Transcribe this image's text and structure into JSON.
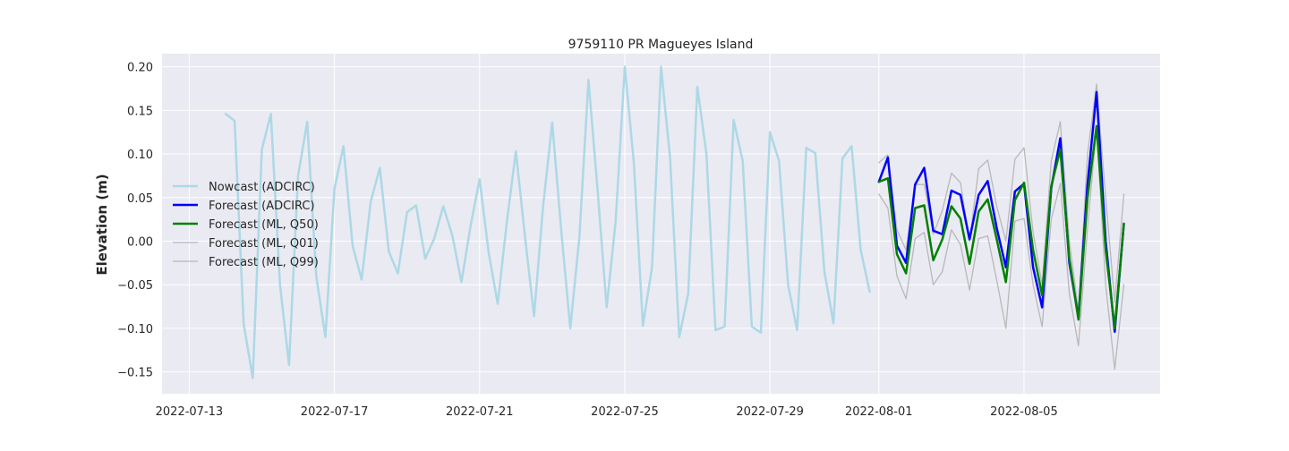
{
  "chart_data": {
    "type": "line",
    "title": "9759110 PR Magueyes Island",
    "xlabel": "",
    "ylabel": "Elevation (m)",
    "xlim": [
      "2022-07-12T06:00",
      "2022-08-08T18:00"
    ],
    "ylim": [
      -0.175,
      0.215
    ],
    "grid": true,
    "legend_position": "center-left",
    "x_ticks": [
      "2022-07-13",
      "2022-07-17",
      "2022-07-21",
      "2022-07-25",
      "2022-07-29",
      "2022-08-01",
      "2022-08-05"
    ],
    "y_ticks": [
      -0.15,
      -0.1,
      -0.05,
      0.0,
      0.05,
      0.1,
      0.15,
      0.2
    ],
    "y_tick_labels": [
      "−0.15",
      "−0.10",
      "−0.05",
      "0.00",
      "0.05",
      "0.10",
      "0.15",
      "0.20"
    ],
    "series": [
      {
        "name": "Nowcast (ADCIRC)",
        "color": "#add8e6",
        "width": 2.5,
        "x_start": "2022-07-14T00:00",
        "step_hours": 6,
        "values": [
          0.146,
          0.138,
          -0.095,
          -0.157,
          0.105,
          0.146,
          -0.05,
          -0.142,
          0.075,
          0.137,
          -0.04,
          -0.11,
          0.06,
          0.109,
          -0.005,
          -0.044,
          0.045,
          0.084,
          -0.012,
          -0.037,
          0.033,
          0.041,
          -0.02,
          0.003,
          0.04,
          0.006,
          -0.047,
          0.017,
          0.071,
          -0.013,
          -0.072,
          0.022,
          0.103,
          0.005,
          -0.086,
          0.04,
          0.136,
          0.012,
          -0.1,
          0.005,
          0.185,
          0.06,
          -0.076,
          0.023,
          0.2,
          0.09,
          -0.097,
          -0.03,
          0.2,
          0.095,
          -0.11,
          -0.06,
          0.177,
          0.1,
          -0.102,
          -0.098,
          0.139,
          0.092,
          -0.098,
          -0.105,
          0.125,
          0.092,
          -0.05,
          -0.102,
          0.107,
          0.101,
          -0.035,
          -0.094,
          0.095,
          0.109,
          -0.01,
          -0.058
        ]
      },
      {
        "name": "Forecast (ADCIRC)",
        "color": "#0000ff",
        "width": 2.5,
        "x_start": "2022-08-01T00:00",
        "step_hours": 6,
        "values": [
          0.068,
          0.096,
          -0.005,
          -0.025,
          0.065,
          0.084,
          0.012,
          0.008,
          0.058,
          0.053,
          0.002,
          0.053,
          0.069,
          0.015,
          -0.03,
          0.057,
          0.066,
          -0.03,
          -0.076,
          0.061,
          0.118,
          -0.025,
          -0.088,
          0.065,
          0.171,
          0.0,
          -0.104,
          0.02
        ]
      },
      {
        "name": "Forecast (ML, Q50)",
        "color": "#008000",
        "width": 2.5,
        "x_start": "2022-08-01T00:00",
        "step_hours": 6,
        "values": [
          0.068,
          0.072,
          -0.015,
          -0.037,
          0.038,
          0.041,
          -0.022,
          0.002,
          0.04,
          0.026,
          -0.026,
          0.034,
          0.048,
          0.002,
          -0.047,
          0.047,
          0.067,
          -0.01,
          -0.062,
          0.063,
          0.105,
          -0.02,
          -0.09,
          0.05,
          0.132,
          -0.01,
          -0.1,
          0.02
        ]
      },
      {
        "name": "Forecast (ML, Q01)",
        "color": "#b8b8b8",
        "width": 1.3,
        "x_start": "2022-08-01T00:00",
        "step_hours": 6,
        "values": [
          0.054,
          0.038,
          -0.04,
          -0.066,
          0.003,
          0.01,
          -0.05,
          -0.035,
          0.013,
          -0.004,
          -0.056,
          0.003,
          0.006,
          -0.045,
          -0.1,
          0.023,
          0.026,
          -0.05,
          -0.098,
          0.025,
          0.066,
          -0.06,
          -0.12,
          0.015,
          0.13,
          -0.05,
          -0.147,
          -0.05
        ]
      },
      {
        "name": "Forecast (ML, Q99)",
        "color": "#b8b8b8",
        "width": 1.3,
        "x_start": "2022-08-01T00:00",
        "step_hours": 6,
        "values": [
          0.09,
          0.099,
          0.013,
          -0.01,
          0.065,
          0.065,
          0.008,
          0.035,
          0.078,
          0.067,
          0.0,
          0.083,
          0.093,
          0.04,
          0.0,
          0.094,
          0.107,
          0.01,
          -0.05,
          0.092,
          0.137,
          0.0,
          -0.08,
          0.1,
          0.18,
          0.05,
          -0.07,
          0.054
        ]
      }
    ]
  }
}
